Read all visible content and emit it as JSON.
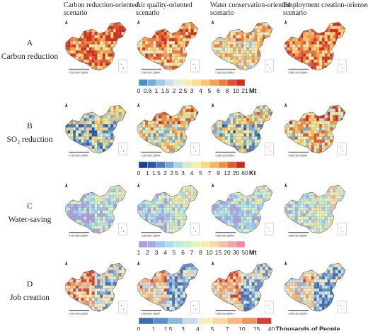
{
  "columns": [
    "Carbon reduction-oriented scenario",
    "Air quality-oriented scenario",
    "Water conservation-oriented scenario",
    "Employment creation-oriented scenario"
  ],
  "rows": [
    {
      "letter": "A",
      "label": "Carbon reduction",
      "legend": {
        "labels": [
          "0",
          "0.6",
          "1",
          "1.5",
          "2",
          "2.5",
          "3",
          "4",
          "5",
          "6",
          "8",
          "10",
          "21"
        ],
        "unit": "Mt",
        "colors": [
          "#4a90c4",
          "#6fb0d8",
          "#9ccbe3",
          "#c5e0ec",
          "#e3efd9",
          "#f5f0b0",
          "#fbe08a",
          "#fbc56a",
          "#f8a24e",
          "#f07c3a",
          "#e5512b",
          "#d62a1e"
        ]
      }
    },
    {
      "letter": "B",
      "label": "SO₂ reduction",
      "legend": {
        "labels": [
          "0",
          "1",
          "1.5",
          "2",
          "2.5",
          "3",
          "4",
          "5",
          "7",
          "9",
          "12",
          "20",
          "60"
        ],
        "unit": "Kt",
        "colors": [
          "#1f3a93",
          "#2855a8",
          "#4a7bbf",
          "#7aa7d4",
          "#a8d5e3",
          "#d5ecc6",
          "#f2f2a8",
          "#f9dc7a",
          "#f7b955",
          "#f08f3a",
          "#e05a2a",
          "#c8281e"
        ]
      }
    },
    {
      "letter": "C",
      "label": "Water-saving",
      "legend": {
        "labels": [
          "1",
          "2",
          "3",
          "4",
          "5",
          "6",
          "7",
          "8",
          "10",
          "15",
          "20",
          "30",
          "50"
        ],
        "unit": "Mt",
        "colors": [
          "#b39ddb",
          "#9fa8f0",
          "#9ec5f5",
          "#a5def0",
          "#b5eedc",
          "#ccf2c4",
          "#e8f5b4",
          "#f8eeaa",
          "#fbd9a0",
          "#f8c0a0",
          "#f4a6a6",
          "#f08a9e"
        ]
      }
    },
    {
      "letter": "D",
      "label": "Job creation",
      "legend": {
        "labels": [
          "0",
          "1",
          "1.5",
          "3",
          "4",
          "5",
          "7",
          "10",
          "15",
          "40"
        ],
        "unit": "Thousands of People",
        "colors": [
          "#3d6fb0",
          "#5d8fc8",
          "#8fb6dc",
          "#c4dced",
          "#f2eec0",
          "#fbd89a",
          "#f8b77a",
          "#f29160",
          "#d63f35"
        ]
      }
    }
  ],
  "scale_bar": "0  500  1000  1500km"
}
